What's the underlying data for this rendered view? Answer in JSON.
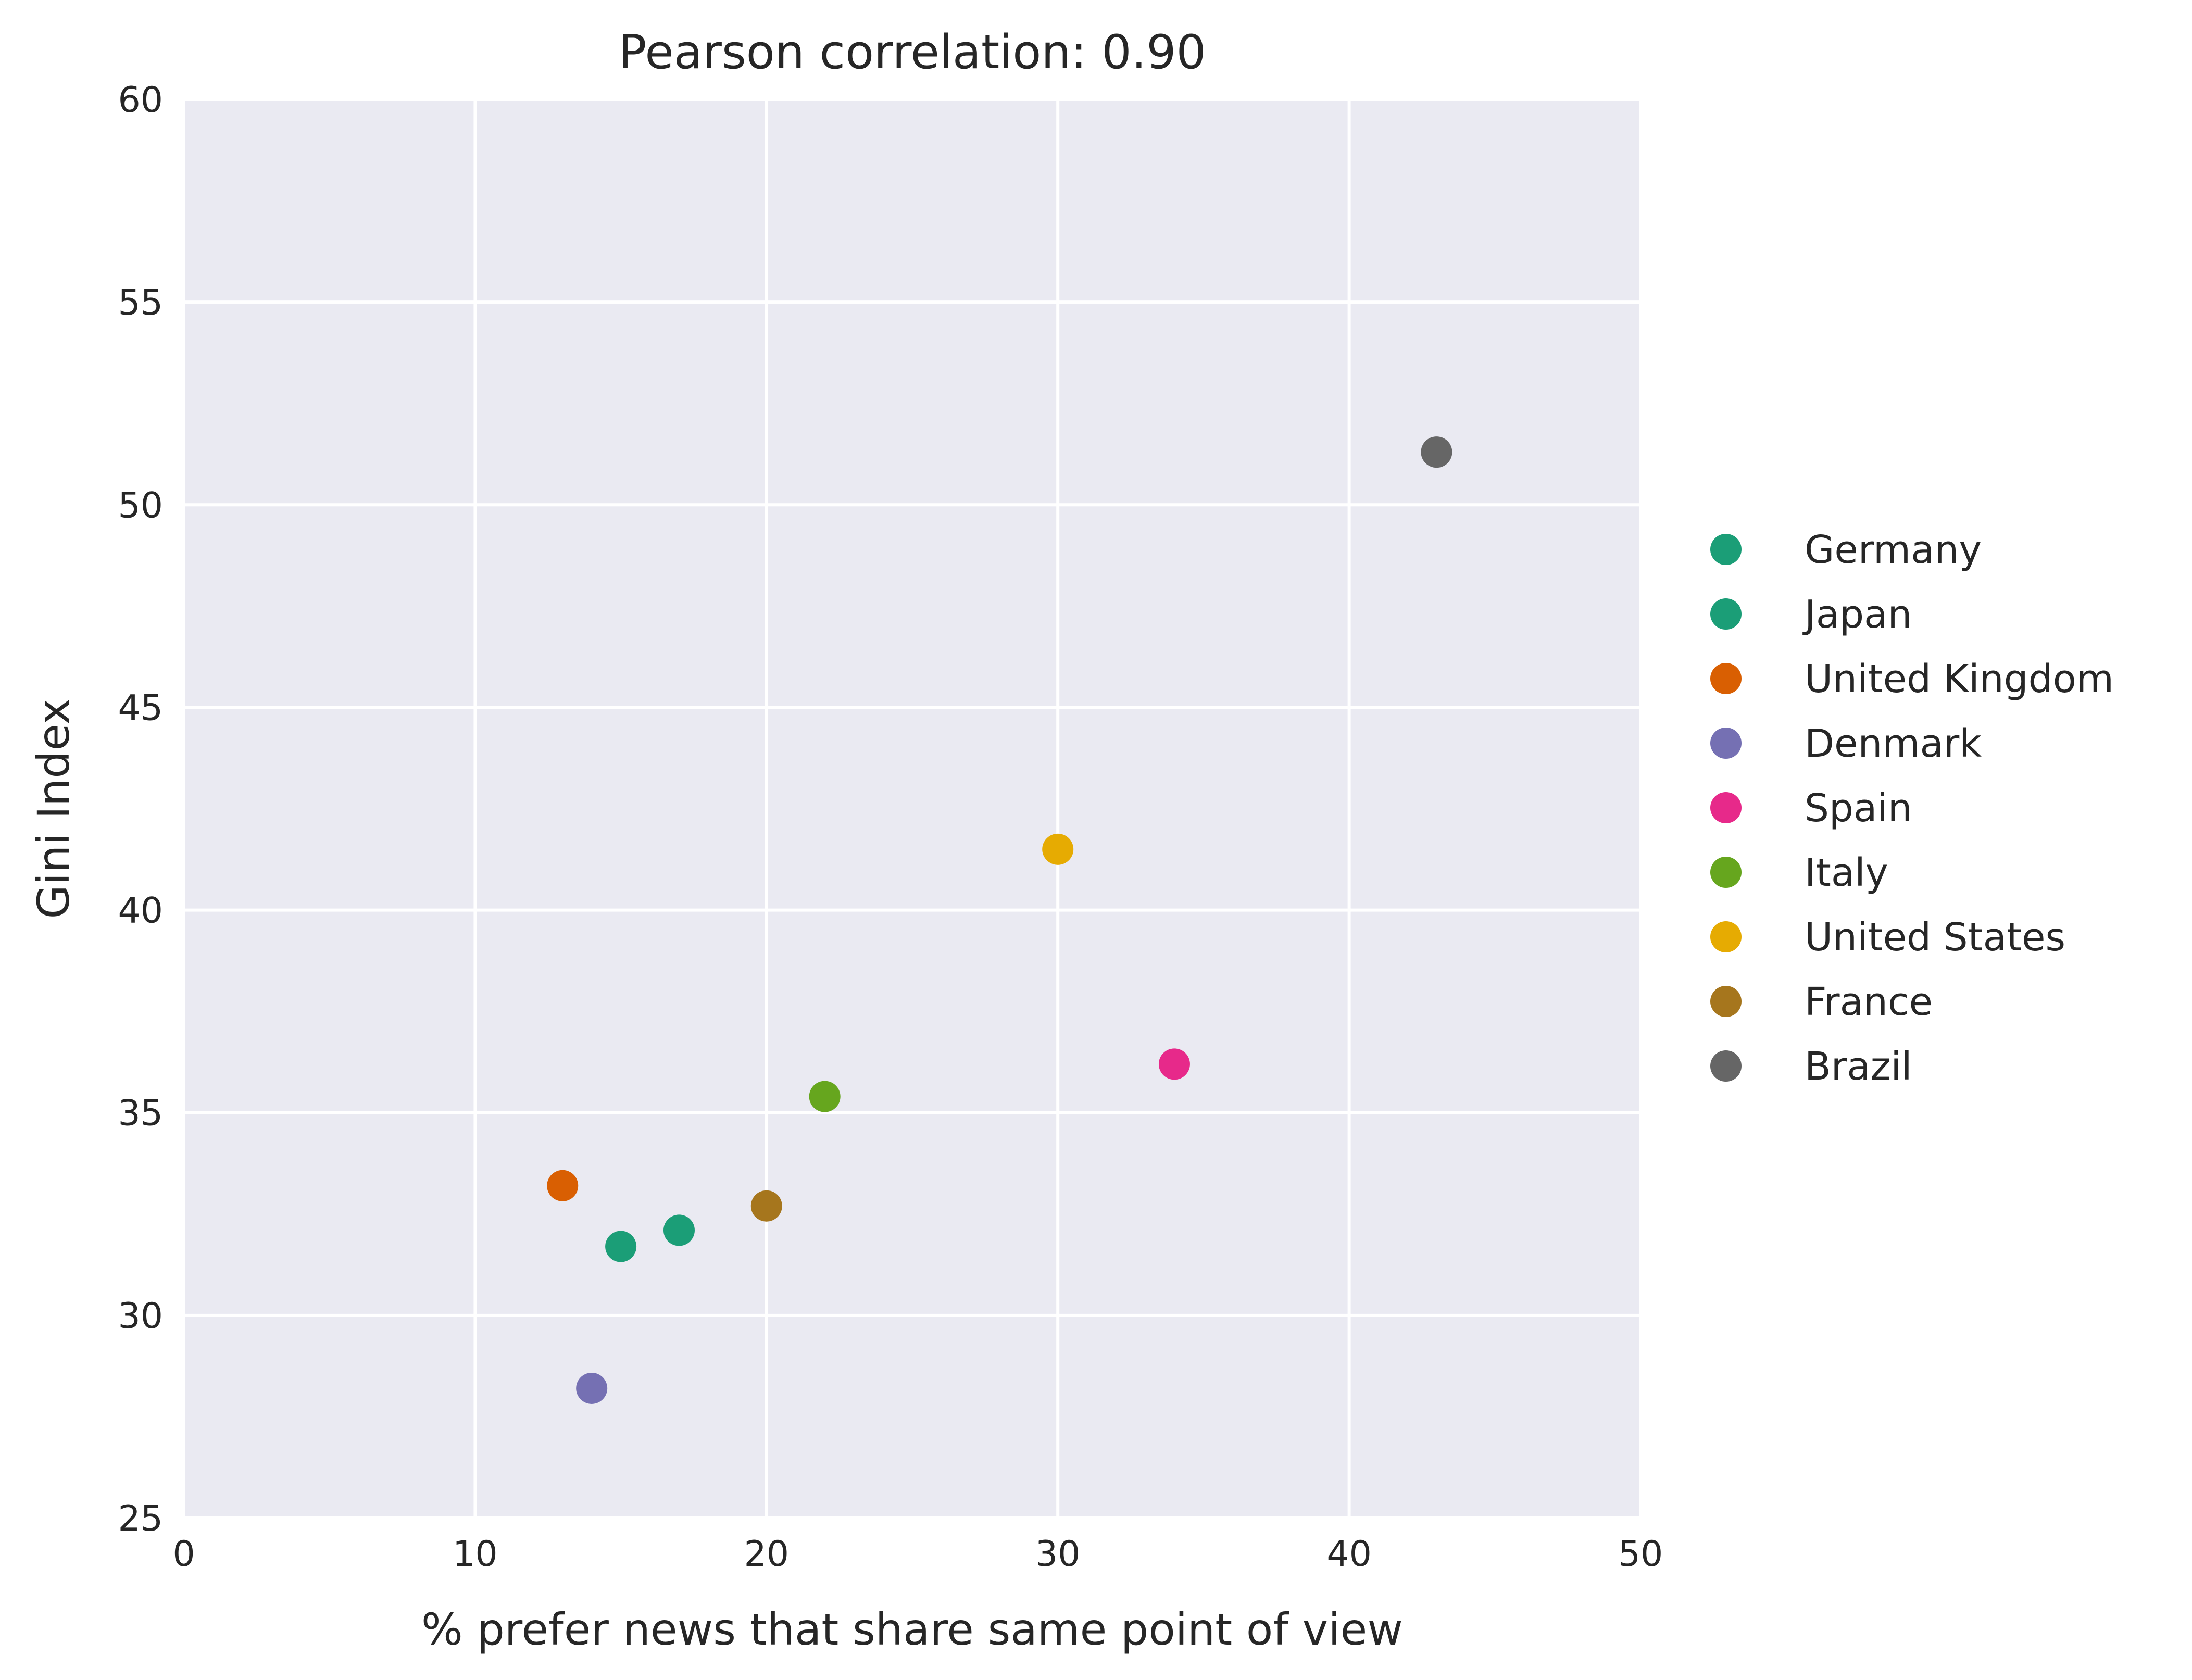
{
  "chart_data": {
    "type": "scatter",
    "title": "Pearson correlation: 0.90",
    "xlabel": "% prefer news that share same point of view",
    "ylabel": "Gini Index",
    "xlim": [
      0,
      50
    ],
    "ylim": [
      25,
      60
    ],
    "xticks": [
      0,
      10,
      20,
      30,
      40,
      50
    ],
    "yticks": [
      25,
      30,
      35,
      40,
      45,
      50,
      55,
      60
    ],
    "grid": true,
    "background_color": "#EAEAF2",
    "grid_color": "#FFFFFF",
    "legend_position": "right",
    "series": [
      {
        "name": "Germany",
        "color": "#1B9E77",
        "points": [
          {
            "x": 17,
            "y": 32.1
          }
        ]
      },
      {
        "name": "Japan",
        "color": "#1B9E77",
        "points": [
          {
            "x": 15,
            "y": 31.7
          }
        ]
      },
      {
        "name": "United Kingdom",
        "color": "#D95F02",
        "points": [
          {
            "x": 13,
            "y": 33.2
          }
        ]
      },
      {
        "name": "Denmark",
        "color": "#7570B3",
        "points": [
          {
            "x": 14,
            "y": 28.2
          }
        ]
      },
      {
        "name": "Spain",
        "color": "#E7298A",
        "points": [
          {
            "x": 34,
            "y": 36.2
          }
        ]
      },
      {
        "name": "Italy",
        "color": "#66A61E",
        "points": [
          {
            "x": 22,
            "y": 35.4
          }
        ]
      },
      {
        "name": "United States",
        "color": "#E6AB02",
        "points": [
          {
            "x": 30,
            "y": 41.5
          }
        ]
      },
      {
        "name": "France",
        "color": "#A6761D",
        "points": [
          {
            "x": 20,
            "y": 32.7
          }
        ]
      },
      {
        "name": "Brazil",
        "color": "#666666",
        "points": [
          {
            "x": 43,
            "y": 51.3
          }
        ]
      }
    ]
  }
}
